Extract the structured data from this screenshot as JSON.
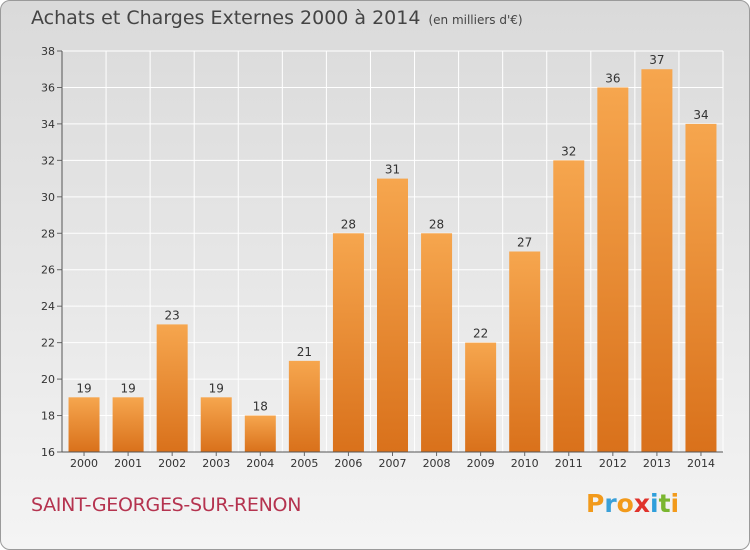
{
  "title": "Achats et Charges Externes 2000 à 2014",
  "unit_note": "(en milliers d'€)",
  "commune": "SAINT-GEORGES-SUR-RENON",
  "logo": {
    "p": "P",
    "r": "r",
    "o": "o",
    "x": "x",
    "i1": "i",
    "t": "t",
    "i2": "i"
  },
  "colors": {
    "bar_light": "#f6a64e",
    "bar_dark": "#d9711b",
    "grid": "#ffffff",
    "axis_text": "#333333"
  },
  "chart_data": {
    "type": "bar",
    "categories": [
      "2000",
      "2001",
      "2002",
      "2003",
      "2004",
      "2005",
      "2006",
      "2007",
      "2008",
      "2009",
      "2010",
      "2011",
      "2012",
      "2013",
      "2014"
    ],
    "values": [
      19,
      19,
      23,
      19,
      18,
      21,
      28,
      31,
      28,
      22,
      27,
      32,
      36,
      37,
      34
    ],
    "ylim": [
      16,
      38
    ],
    "yticks": [
      16,
      18,
      20,
      22,
      24,
      26,
      28,
      30,
      32,
      34,
      36,
      38
    ],
    "grid": true,
    "xlabel": "",
    "ylabel": ""
  }
}
